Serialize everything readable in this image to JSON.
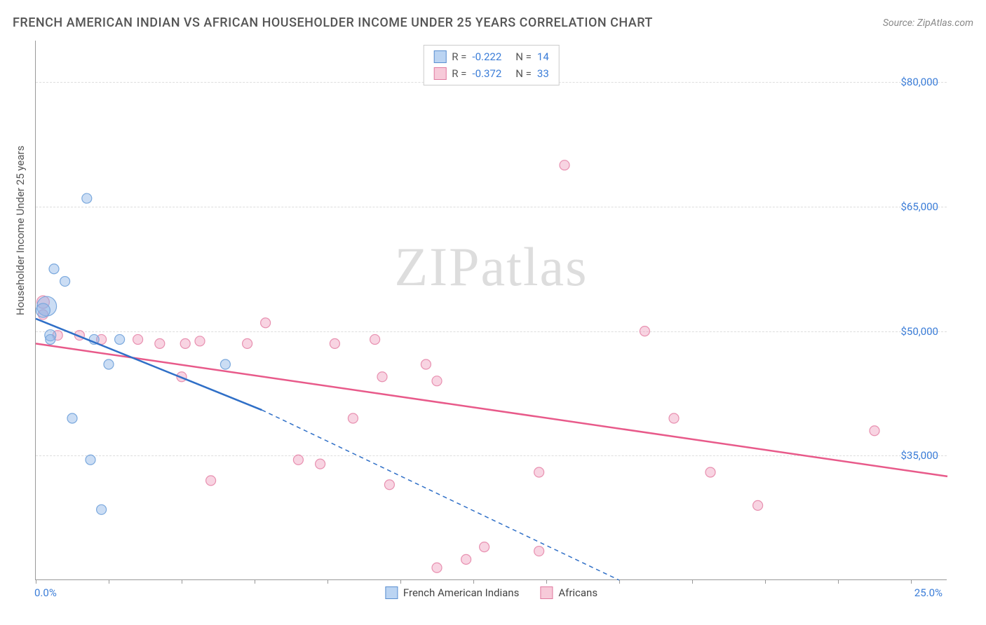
{
  "header": {
    "title": "FRENCH AMERICAN INDIAN VS AFRICAN HOUSEHOLDER INCOME UNDER 25 YEARS CORRELATION CHART",
    "source": "Source: ZipAtlas.com"
  },
  "watermark": "ZIPatlas",
  "ylabel": "Householder Income Under 25 years",
  "xaxis": {
    "min": 0.0,
    "max": 25.0,
    "label_min": "0.0%",
    "label_max": "25.0%",
    "tick_positions_pct": [
      0,
      8,
      16,
      24,
      32,
      40,
      48,
      56,
      64,
      72,
      80,
      88,
      96
    ]
  },
  "yaxis": {
    "min": 20000,
    "max": 85000,
    "gridlines": [
      {
        "value": 35000,
        "label": "$35,000"
      },
      {
        "value": 50000,
        "label": "$50,000"
      },
      {
        "value": 65000,
        "label": "$65,000"
      },
      {
        "value": 80000,
        "label": "$80,000"
      }
    ]
  },
  "series": {
    "blue": {
      "name": "French American Indians",
      "color_fill": "rgba(140,180,230,0.45)",
      "color_stroke": "#7aa8dd",
      "line_color": "#2f6fc7",
      "r_value": "-0.222",
      "n_value": "14",
      "points": [
        {
          "x": 0.3,
          "y": 53000,
          "r": 14
        },
        {
          "x": 0.2,
          "y": 52500,
          "r": 10
        },
        {
          "x": 0.5,
          "y": 57500,
          "r": 7
        },
        {
          "x": 0.8,
          "y": 56000,
          "r": 7
        },
        {
          "x": 1.4,
          "y": 66000,
          "r": 7
        },
        {
          "x": 0.4,
          "y": 49500,
          "r": 8
        },
        {
          "x": 1.6,
          "y": 49000,
          "r": 7
        },
        {
          "x": 2.3,
          "y": 49000,
          "r": 7
        },
        {
          "x": 2.0,
          "y": 46000,
          "r": 7
        },
        {
          "x": 5.2,
          "y": 46000,
          "r": 7
        },
        {
          "x": 1.0,
          "y": 39500,
          "r": 7
        },
        {
          "x": 1.5,
          "y": 34500,
          "r": 7
        },
        {
          "x": 1.8,
          "y": 28500,
          "r": 7
        },
        {
          "x": 0.4,
          "y": 49000,
          "r": 7
        }
      ],
      "trend": {
        "x1": 0,
        "y1": 51500,
        "x2_solid": 6.2,
        "y2_solid": 40500,
        "x2_dash": 16.0,
        "y2_dash": 20000
      }
    },
    "pink": {
      "name": "Africans",
      "color_fill": "rgba(240,160,190,0.45)",
      "color_stroke": "#e890b0",
      "line_color": "#e85a8a",
      "r_value": "-0.372",
      "n_value": "33",
      "points": [
        {
          "x": 0.2,
          "y": 53500,
          "r": 9
        },
        {
          "x": 0.2,
          "y": 52000,
          "r": 7
        },
        {
          "x": 0.6,
          "y": 49500,
          "r": 7
        },
        {
          "x": 1.2,
          "y": 49500,
          "r": 7
        },
        {
          "x": 1.8,
          "y": 49000,
          "r": 7
        },
        {
          "x": 2.8,
          "y": 49000,
          "r": 7
        },
        {
          "x": 3.4,
          "y": 48500,
          "r": 7
        },
        {
          "x": 4.1,
          "y": 48500,
          "r": 7
        },
        {
          "x": 4.5,
          "y": 48800,
          "r": 7
        },
        {
          "x": 5.8,
          "y": 48500,
          "r": 7
        },
        {
          "x": 6.3,
          "y": 51000,
          "r": 7
        },
        {
          "x": 8.2,
          "y": 48500,
          "r": 7
        },
        {
          "x": 9.3,
          "y": 49000,
          "r": 7
        },
        {
          "x": 9.5,
          "y": 44500,
          "r": 7
        },
        {
          "x": 10.7,
          "y": 46000,
          "r": 7
        },
        {
          "x": 11.0,
          "y": 44000,
          "r": 7
        },
        {
          "x": 8.7,
          "y": 39500,
          "r": 7
        },
        {
          "x": 4.0,
          "y": 44500,
          "r": 7
        },
        {
          "x": 4.8,
          "y": 32000,
          "r": 7
        },
        {
          "x": 7.2,
          "y": 34500,
          "r": 7
        },
        {
          "x": 7.8,
          "y": 34000,
          "r": 7
        },
        {
          "x": 9.7,
          "y": 31500,
          "r": 7
        },
        {
          "x": 11.0,
          "y": 21500,
          "r": 7
        },
        {
          "x": 11.8,
          "y": 22500,
          "r": 7
        },
        {
          "x": 12.3,
          "y": 24000,
          "r": 7
        },
        {
          "x": 13.8,
          "y": 33000,
          "r": 7
        },
        {
          "x": 14.5,
          "y": 70000,
          "r": 7
        },
        {
          "x": 16.7,
          "y": 50000,
          "r": 7
        },
        {
          "x": 17.5,
          "y": 39500,
          "r": 7
        },
        {
          "x": 18.5,
          "y": 33000,
          "r": 7
        },
        {
          "x": 19.8,
          "y": 29000,
          "r": 7
        },
        {
          "x": 23.0,
          "y": 38000,
          "r": 7
        },
        {
          "x": 13.8,
          "y": 23500,
          "r": 7
        }
      ],
      "trend": {
        "x1": 0,
        "y1": 48500,
        "x2": 25.0,
        "y2": 32500
      }
    }
  },
  "bottom_legend": {
    "item1": "French American Indians",
    "item2": "Africans"
  }
}
